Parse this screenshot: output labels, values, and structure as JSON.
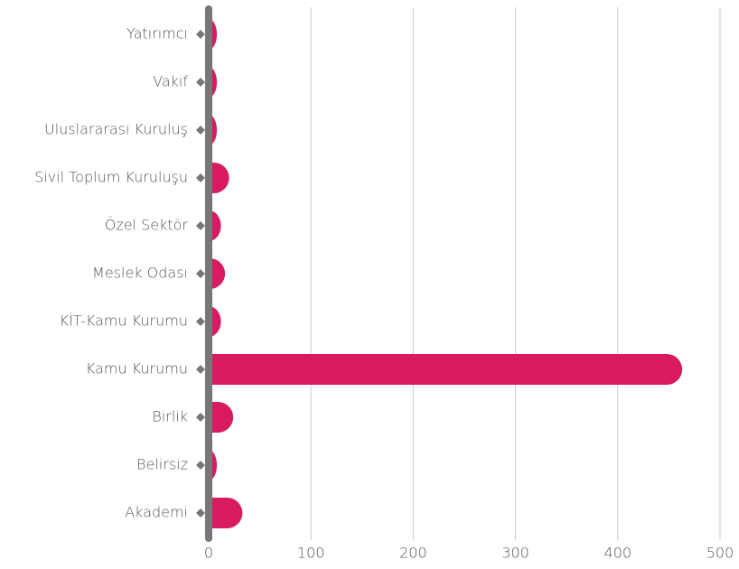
{
  "chart_data": {
    "type": "barh",
    "categories": [
      "Yatırımcı",
      "Vakıf",
      "Uluslararası Kuruluş",
      "Sivil Toplum Kuruluşu",
      "Özel Sektör",
      "Meslek Odası",
      "KİT-Kamu Kurumu",
      "Kamu Kurumu",
      "Birlik",
      "Belirsiz",
      "Akademi"
    ],
    "values": [
      8,
      8,
      8,
      20,
      12,
      16,
      12,
      463,
      24,
      8,
      33
    ],
    "color": "#d81b60",
    "xlim": [
      0,
      500
    ],
    "xticks": [
      0,
      100,
      200,
      300,
      400,
      500
    ],
    "grid": true
  }
}
